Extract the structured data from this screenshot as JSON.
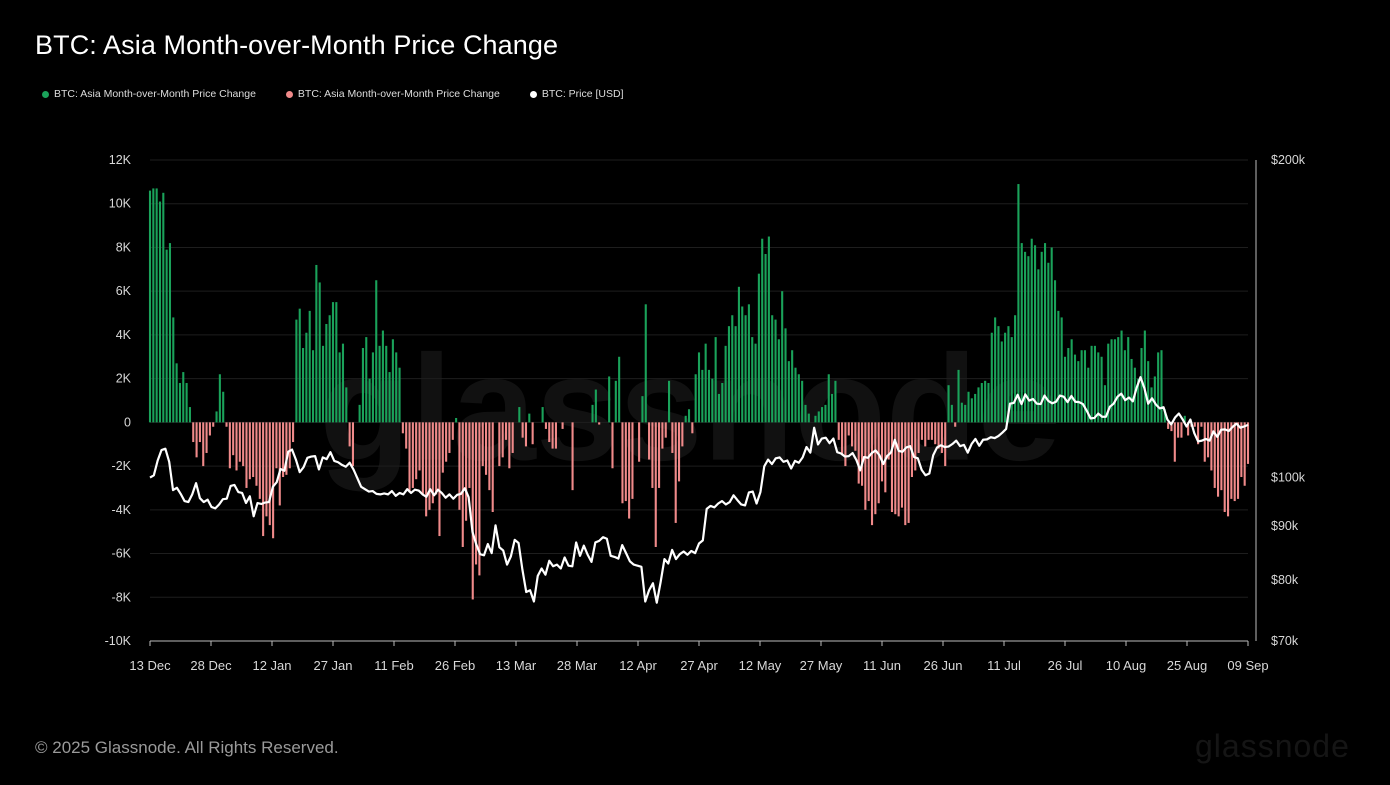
{
  "title": "BTC: Asia Month-over-Month Price Change",
  "footer": "© 2025 Glassnode. All Rights Reserved.",
  "watermark": "glassnode",
  "chart_data": {
    "type": "bar",
    "title": "BTC: Asia Month-over-Month Price Change",
    "legend_placement": "top-left",
    "grid": true,
    "legend": [
      {
        "label": "BTC: Asia Month-over-Month Price Change",
        "color": "#1aa25a"
      },
      {
        "label": "BTC: Asia Month-over-Month Price Change",
        "color": "#f08a8a"
      },
      {
        "label": "BTC: Price [USD]",
        "color": "#ffffff"
      }
    ],
    "x_ticks": [
      "13 Dec",
      "28 Dec",
      "12 Jan",
      "27 Jan",
      "11 Feb",
      "26 Feb",
      "13 Mar",
      "28 Mar",
      "12 Apr",
      "27 Apr",
      "12 May",
      "27 May",
      "11 Jun",
      "26 Jun",
      "11 Jul",
      "26 Jul",
      "10 Aug",
      "25 Aug",
      "09 Sep"
    ],
    "y_left": {
      "ticks": [
        "12K",
        "10K",
        "8K",
        "6K",
        "4K",
        "2K",
        "0",
        "-2K",
        "-4K",
        "-6K",
        "-8K",
        "-10K"
      ],
      "range": [
        -10000,
        12000
      ]
    },
    "y_right": {
      "ticks": [
        "$200k",
        "$100k",
        "$90k",
        "$80k",
        "$70k"
      ],
      "values": [
        200000,
        100000,
        90000,
        80000,
        70000
      ],
      "range": [
        70000,
        200000
      ],
      "scale": "log"
    },
    "positive_color": "#1aa25a",
    "negative_color": "#f08a8a",
    "price_color": "#ffffff",
    "series": [
      {
        "name": "BTC: Asia Month-over-Month Price Change",
        "start": "2024-12-13",
        "step_days": 1,
        "values": [
          10600,
          10700,
          10700,
          10100,
          10500,
          7900,
          8200,
          4800,
          2700,
          1800,
          2300,
          1800,
          700,
          -900,
          -1600,
          -900,
          -2000,
          -1400,
          -600,
          -200,
          500,
          2200,
          1400,
          -200,
          -2100,
          -1500,
          -2200,
          -1800,
          -2000,
          -3000,
          -2600,
          -2500,
          -2900,
          -3500,
          -5200,
          -4300,
          -4700,
          -5300,
          -2100,
          -3800,
          -2500,
          -2400,
          -2100,
          -900,
          4700,
          5200,
          3400,
          4100,
          5100,
          3300,
          7200,
          6400,
          3500,
          4500,
          4900,
          5500,
          5500,
          3200,
          3600,
          1600,
          -1100,
          -2000,
          0,
          800,
          3400,
          3900,
          2000,
          3200,
          6500,
          3500,
          4200,
          3500,
          2300,
          3800,
          3200,
          2500,
          -500,
          -1200,
          -3200,
          -3000,
          -2600,
          -2200,
          -3300,
          -4300,
          -4000,
          -3700,
          -3300,
          -5200,
          -2300,
          -1800,
          -1400,
          -800,
          200,
          -4000,
          -5700,
          -4500,
          -3000,
          -8100,
          -6500,
          -7000,
          -2000,
          -2400,
          -3100,
          -4100,
          0,
          -2000,
          -1600,
          -800,
          -2100,
          -1400,
          0,
          700,
          -700,
          -1100,
          400,
          -1000,
          0,
          0,
          700,
          -300,
          -900,
          -1200,
          -1200,
          0,
          -300,
          0,
          0,
          -3100,
          0,
          0,
          0,
          0,
          0,
          800,
          1500,
          -100,
          0,
          0,
          2100,
          -2100,
          1900,
          3000,
          -3700,
          -3600,
          -4400,
          -3500,
          0,
          -1800,
          1200,
          5400,
          -1700,
          -3000,
          -5700,
          -3000,
          -1200,
          -700,
          1900,
          -1400,
          -4600,
          -2700,
          -1100,
          300,
          600,
          -500,
          2200,
          3200,
          2400,
          3600,
          2400,
          2000,
          3900,
          1300,
          1800,
          3500,
          4400,
          4900,
          4400,
          6200,
          5300,
          4900,
          5400,
          3900,
          3600,
          6800,
          8400,
          7700,
          8500,
          4900,
          4700,
          3800,
          6000,
          4300,
          2800,
          3300,
          2500,
          2200,
          1900,
          800,
          400,
          0,
          300,
          500,
          700,
          800,
          2200,
          1300,
          1900,
          -800,
          -1500,
          -2000,
          -600,
          -1100,
          -1300,
          -2800,
          -2900,
          -4000,
          -3600,
          -4700,
          -4200,
          -3700,
          -2700,
          -3200,
          -1700,
          -4100,
          -4200,
          -4300,
          -3900,
          -4700,
          -4600,
          -2500,
          -2200,
          -1400,
          -800,
          -1100,
          -800,
          -800,
          -1000,
          -1200,
          -1400,
          -2000,
          1700,
          800,
          -200,
          2400,
          900,
          800,
          1400,
          1100,
          1300,
          1600,
          1800,
          1900,
          1800,
          4100,
          4800,
          4400,
          3700,
          4100,
          4400,
          3900,
          4900,
          10900,
          8200,
          7800,
          7600,
          8400,
          8100,
          7000,
          7800,
          8200,
          7300,
          8000,
          6500,
          5100,
          4800,
          3000,
          3400,
          3800,
          3100,
          2800,
          3300,
          3300,
          2500,
          3500,
          3500,
          3200,
          3000,
          1700,
          3600,
          3800,
          3800,
          3900,
          4200,
          3300,
          3900,
          2900,
          2500,
          2000,
          3400,
          4200,
          2800,
          1600,
          2100,
          3200,
          3300,
          600,
          -300,
          -400,
          -1800,
          -700,
          -700,
          300,
          -600,
          -200,
          -200,
          -1000,
          -200,
          -1800,
          -1600,
          -2200,
          -3000,
          -3400,
          -3100,
          -4100,
          -4300,
          -3500,
          -3600,
          -3500,
          -2500,
          -2900,
          -1900
        ],
        "value_note": "Month-over-month change per bar; green bars positive, red bars negative"
      },
      {
        "name": "BTC: Price [USD]",
        "start": "2024-12-13",
        "step_days": 1,
        "values": [
          100000,
          100500,
          103800,
          106200,
          106500,
          103500,
          97300,
          97800,
          96500,
          95000,
          94800,
          96400,
          98800,
          95600,
          94800,
          95300,
          93800,
          93500,
          94300,
          95400,
          95500,
          98200,
          98400,
          96900,
          96700,
          94600,
          96000,
          91900,
          94600,
          94400,
          94700,
          94800,
          98000,
          99000,
          101900,
          101500,
          105800,
          106300,
          104000,
          101200,
          102300,
          104400,
          104700,
          104800,
          101800,
          104500,
          104100,
          105700,
          103700,
          103400,
          102800,
          102400,
          103300,
          101800,
          99900,
          98000,
          97500,
          97000,
          97100,
          96500,
          96400,
          96600,
          96400,
          97100,
          96100,
          96700,
          96400,
          97500,
          96700,
          97400,
          97200,
          96400,
          95900,
          97500,
          96200,
          97400,
          96700,
          95700,
          96400,
          95500,
          96300,
          96500,
          97700,
          95800,
          88800,
          86400,
          84600,
          84400,
          86500,
          84800,
          90100,
          85900,
          85300,
          82700,
          84200,
          87300,
          86700,
          81800,
          77900,
          78200,
          76300,
          80700,
          82000,
          80900,
          83400,
          82400,
          82700,
          82000,
          84000,
          82500,
          82400,
          86800,
          84300,
          86200,
          84500,
          83200,
          86800,
          87100,
          87800,
          87500,
          84300,
          84100,
          83800,
          86300,
          84800,
          83300,
          82700,
          82500,
          82300,
          76300,
          78200,
          79400,
          76100,
          79600,
          83700,
          82900,
          85400,
          83700,
          84600,
          85100,
          84500,
          85200,
          84800,
          86600,
          87200,
          93400,
          94000,
          93700,
          94500,
          95000,
          94300,
          94800,
          96200,
          95200,
          94300,
          94100,
          96800,
          97000,
          94500,
          96900,
          102500,
          104000,
          103000,
          104300,
          104500,
          103500,
          103800,
          102000,
          103700,
          103300,
          104500,
          106900,
          105600,
          111500,
          107500,
          108900,
          109100,
          107800,
          108900,
          105700,
          105400,
          104700,
          104800,
          105500,
          103900,
          101600,
          104600,
          104400,
          105500,
          106100,
          105000,
          103000,
          104800,
          105600,
          108600,
          106000,
          105800,
          106800,
          107100,
          104600,
          104300,
          101700,
          100500,
          100900,
          105000,
          106800,
          107300,
          106900,
          107000,
          107600,
          108400,
          107100,
          107400,
          105600,
          107600,
          108800,
          107200,
          108600,
          108700,
          109200,
          109000,
          109500,
          110300,
          111200,
          117500,
          117700,
          119800,
          117400,
          119900,
          118300,
          118700,
          117500,
          117400,
          119600,
          118200,
          117600,
          118000,
          119600,
          119300,
          117900,
          119500,
          118000,
          117900,
          117400,
          115700,
          113800,
          113900,
          115000,
          114200,
          114200,
          116700,
          117500,
          119300,
          120100,
          118400,
          119100,
          118100,
          121700,
          124500,
          121600,
          117500,
          118900,
          117300,
          116300,
          116600,
          113500,
          112300,
          114000,
          115000,
          113500,
          111800,
          113500,
          110200,
          108200,
          108400,
          108800,
          108400,
          110600,
          109300,
          111000,
          111100,
          110700,
          111700,
          112500,
          111500,
          111800,
          112200
        ]
      }
    ]
  }
}
